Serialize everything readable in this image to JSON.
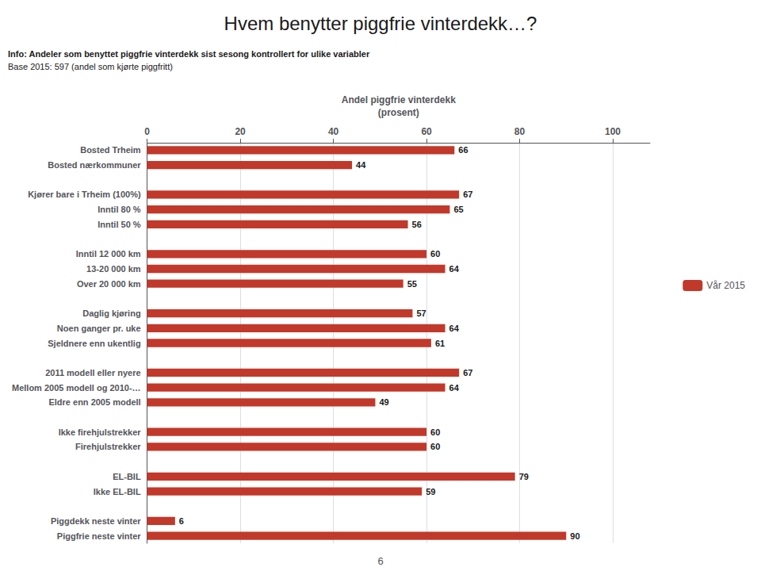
{
  "chart_data": {
    "type": "bar",
    "orientation": "horizontal",
    "title": "Hvem benytter piggfrie vinterdekk…?",
    "annotations": [
      "Info: Andeler som benyttet piggfrie vinterdekk sist sesong kontrollert for ulike variabler",
      "Base 2015: 597 (andel som kjørte piggfritt)",
      "6"
    ],
    "xlabel": "Andel piggfrie vinterdekk\n(prosent)",
    "categories": [
      "Bosted Trheim",
      "Bosted nærkommuner",
      null,
      "Kjører bare i Trheim (100%)",
      "Inntil 80 %",
      "Inntil 50 %",
      null,
      "Inntil 12 000 km",
      "13-20 000 km",
      "Over 20 000 km",
      null,
      "Daglig kjøring",
      "Noen ganger pr. uke",
      "Sjeldnere enn ukentlig",
      null,
      "2011 modell eller nyere",
      "Mellom 2005 modell og 2010-…",
      "Eldre enn 2005 modell",
      null,
      "Ikke firehjulstrekker",
      "Firehjulstrekker",
      null,
      "EL-BIL",
      "Ikke EL-BIL",
      null,
      "Piggdekk neste vinter",
      "Piggfrie neste vinter"
    ],
    "series": [
      {
        "name": "Vår 2015",
        "color": "#C1392B",
        "values": [
          66,
          44,
          null,
          67,
          65,
          56,
          null,
          60,
          64,
          55,
          null,
          57,
          64,
          61,
          null,
          67,
          64,
          49,
          null,
          60,
          60,
          null,
          79,
          59,
          null,
          6,
          90
        ]
      }
    ],
    "xlim": [
      0,
      108
    ],
    "xticks": [
      0,
      20,
      40,
      60,
      80,
      100
    ],
    "grid": true,
    "legend": "right",
    "data_labels": true
  }
}
